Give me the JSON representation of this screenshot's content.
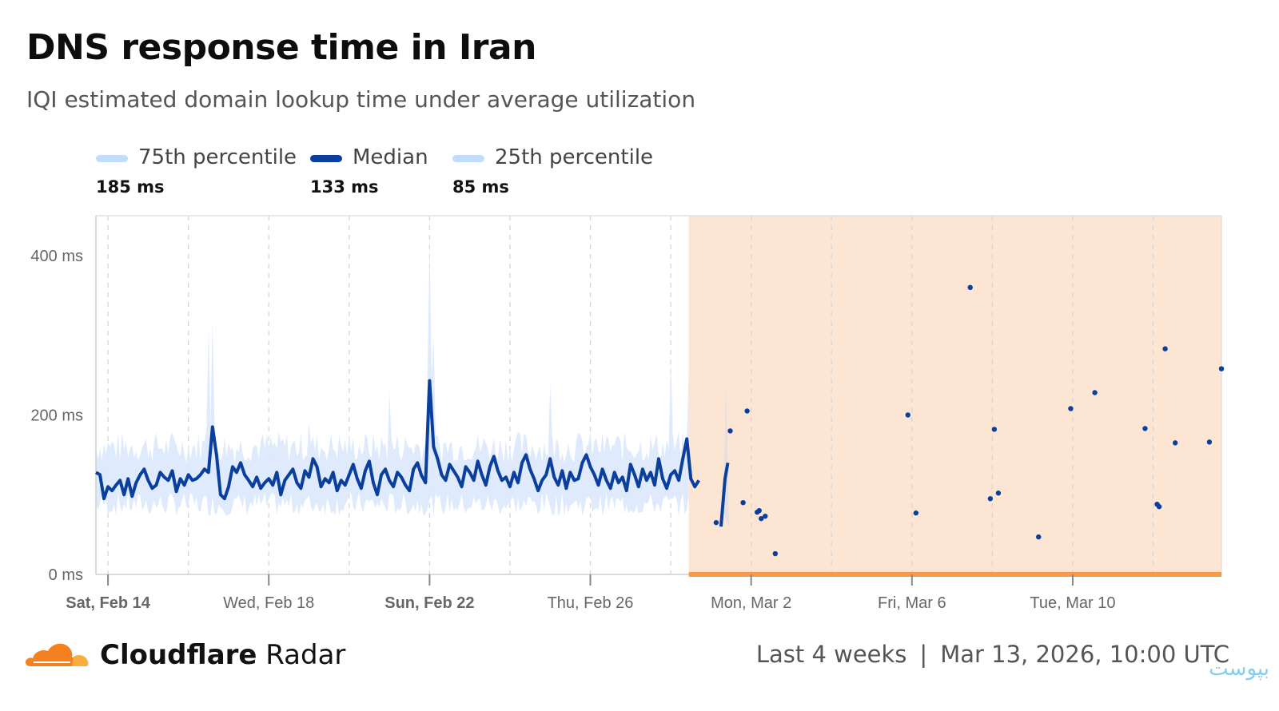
{
  "title": "DNS response time in Iran",
  "subtitle": "IQI estimated domain lookup time under average utilization",
  "legend": [
    {
      "label": "75th percentile",
      "value": "185 ms",
      "color": "#c2dcfc"
    },
    {
      "label": "Median",
      "value": "133 ms",
      "color": "#0a3f9e"
    },
    {
      "label": "25th percentile",
      "value": "85 ms",
      "color": "#c2dcfc"
    }
  ],
  "footer": {
    "brand_bold": "Cloudflare",
    "brand_rest": " Radar",
    "period": "Last 4 weeks",
    "separator": "|",
    "timestamp": "Mar 13, 2026, 10:00 UTC",
    "watermark": "بپوست"
  },
  "colors": {
    "median": "#0a3f9e",
    "band": "#dde9fd",
    "outage_fill": "#fde5d3",
    "outage_line": "#f59a4c",
    "grid": "#d6d6d6",
    "axis_text": "#666666"
  },
  "chart_data": {
    "type": "line",
    "title": "DNS response time in Iran",
    "ylabel": "",
    "xlabel": "",
    "y_unit": "ms",
    "ylim": [
      0,
      450
    ],
    "y_ticks": [
      {
        "value": 0,
        "label": "0 ms"
      },
      {
        "value": 200,
        "label": "200 ms"
      },
      {
        "value": 400,
        "label": "400 ms"
      }
    ],
    "x_range_days": [
      -0.3,
      27.7
    ],
    "x_ticks": [
      {
        "day": 0,
        "label": "Sat, Feb 14",
        "bold": true
      },
      {
        "day": 4,
        "label": "Wed, Feb 18",
        "bold": false
      },
      {
        "day": 8,
        "label": "Sun, Feb 22",
        "bold": true
      },
      {
        "day": 12,
        "label": "Thu, Feb 26",
        "bold": false
      },
      {
        "day": 16,
        "label": "Mon, Mar 2",
        "bold": false
      },
      {
        "day": 20,
        "label": "Fri, Mar 6",
        "bold": false
      },
      {
        "day": 24,
        "label": "Tue, Mar 10",
        "bold": false
      }
    ],
    "outage_region_days": [
      14.45,
      27.7
    ],
    "median_series": {
      "name": "Median",
      "points": [
        [
          -0.3,
          128
        ],
        [
          -0.2,
          125
        ],
        [
          -0.1,
          95
        ],
        [
          0,
          110
        ],
        [
          0.1,
          105
        ],
        [
          0.2,
          112
        ],
        [
          0.3,
          118
        ],
        [
          0.4,
          100
        ],
        [
          0.5,
          120
        ],
        [
          0.6,
          98
        ],
        [
          0.7,
          115
        ],
        [
          0.8,
          125
        ],
        [
          0.9,
          132
        ],
        [
          1,
          118
        ],
        [
          1.1,
          108
        ],
        [
          1.2,
          112
        ],
        [
          1.3,
          128
        ],
        [
          1.4,
          122
        ],
        [
          1.5,
          118
        ],
        [
          1.6,
          130
        ],
        [
          1.7,
          104
        ],
        [
          1.8,
          120
        ],
        [
          1.9,
          112
        ],
        [
          2,
          125
        ],
        [
          2.1,
          118
        ],
        [
          2.2,
          120
        ],
        [
          2.3,
          125
        ],
        [
          2.4,
          132
        ],
        [
          2.5,
          128
        ],
        [
          2.6,
          185
        ],
        [
          2.7,
          150
        ],
        [
          2.8,
          100
        ],
        [
          2.9,
          95
        ],
        [
          3,
          110
        ],
        [
          3.1,
          135
        ],
        [
          3.2,
          128
        ],
        [
          3.3,
          140
        ],
        [
          3.4,
          125
        ],
        [
          3.5,
          118
        ],
        [
          3.6,
          110
        ],
        [
          3.7,
          122
        ],
        [
          3.8,
          108
        ],
        [
          3.9,
          115
        ],
        [
          4,
          120
        ],
        [
          4.1,
          112
        ],
        [
          4.2,
          128
        ],
        [
          4.3,
          100
        ],
        [
          4.4,
          118
        ],
        [
          4.5,
          125
        ],
        [
          4.6,
          132
        ],
        [
          4.7,
          115
        ],
        [
          4.8,
          108
        ],
        [
          4.9,
          130
        ],
        [
          5,
          122
        ],
        [
          5.1,
          145
        ],
        [
          5.2,
          135
        ],
        [
          5.3,
          110
        ],
        [
          5.4,
          120
        ],
        [
          5.5,
          115
        ],
        [
          5.6,
          128
        ],
        [
          5.7,
          105
        ],
        [
          5.8,
          118
        ],
        [
          5.9,
          112
        ],
        [
          6,
          125
        ],
        [
          6.1,
          138
        ],
        [
          6.2,
          120
        ],
        [
          6.3,
          108
        ],
        [
          6.4,
          130
        ],
        [
          6.5,
          142
        ],
        [
          6.6,
          115
        ],
        [
          6.7,
          100
        ],
        [
          6.8,
          125
        ],
        [
          6.9,
          132
        ],
        [
          7,
          118
        ],
        [
          7.1,
          110
        ],
        [
          7.2,
          128
        ],
        [
          7.3,
          122
        ],
        [
          7.4,
          112
        ],
        [
          7.5,
          105
        ],
        [
          7.6,
          132
        ],
        [
          7.7,
          140
        ],
        [
          7.8,
          124
        ],
        [
          7.9,
          115
        ],
        [
          8,
          243
        ],
        [
          8.1,
          160
        ],
        [
          8.2,
          145
        ],
        [
          8.3,
          125
        ],
        [
          8.4,
          118
        ],
        [
          8.5,
          138
        ],
        [
          8.6,
          130
        ],
        [
          8.7,
          122
        ],
        [
          8.8,
          110
        ],
        [
          8.9,
          135
        ],
        [
          9,
          128
        ],
        [
          9.1,
          118
        ],
        [
          9.2,
          142
        ],
        [
          9.3,
          125
        ],
        [
          9.4,
          112
        ],
        [
          9.5,
          135
        ],
        [
          9.6,
          148
        ],
        [
          9.7,
          130
        ],
        [
          9.8,
          118
        ],
        [
          9.9,
          122
        ],
        [
          10,
          110
        ],
        [
          10.1,
          128
        ],
        [
          10.2,
          115
        ],
        [
          10.3,
          140
        ],
        [
          10.4,
          150
        ],
        [
          10.5,
          132
        ],
        [
          10.6,
          120
        ],
        [
          10.7,
          105
        ],
        [
          10.8,
          118
        ],
        [
          10.9,
          125
        ],
        [
          11,
          145
        ],
        [
          11.1,
          122
        ],
        [
          11.2,
          112
        ],
        [
          11.3,
          130
        ],
        [
          11.4,
          108
        ],
        [
          11.5,
          128
        ],
        [
          11.6,
          118
        ],
        [
          11.7,
          120
        ],
        [
          11.8,
          140
        ],
        [
          11.9,
          150
        ],
        [
          12,
          135
        ],
        [
          12.1,
          125
        ],
        [
          12.2,
          112
        ],
        [
          12.3,
          132
        ],
        [
          12.4,
          118
        ],
        [
          12.5,
          108
        ],
        [
          12.6,
          128
        ],
        [
          12.7,
          115
        ],
        [
          12.8,
          122
        ],
        [
          12.9,
          105
        ],
        [
          13,
          138
        ],
        [
          13.1,
          125
        ],
        [
          13.2,
          110
        ],
        [
          13.3,
          132
        ],
        [
          13.4,
          118
        ],
        [
          13.5,
          128
        ],
        [
          13.6,
          112
        ],
        [
          13.7,
          145
        ],
        [
          13.8,
          120
        ],
        [
          13.9,
          108
        ],
        [
          14,
          125
        ],
        [
          14.1,
          130
        ],
        [
          14.2,
          118
        ],
        [
          14.3,
          145
        ],
        [
          14.4,
          170
        ],
        [
          14.5,
          120
        ],
        [
          14.6,
          110
        ],
        [
          14.7,
          118
        ]
      ],
      "segment2": [
        [
          15.25,
          60
        ],
        [
          15.35,
          120
        ],
        [
          15.42,
          140
        ]
      ],
      "dots": [
        [
          15.13,
          65
        ],
        [
          15.48,
          180
        ],
        [
          15.8,
          90
        ],
        [
          15.9,
          205
        ],
        [
          16.15,
          78
        ],
        [
          16.2,
          80
        ],
        [
          16.25,
          70
        ],
        [
          16.35,
          73
        ],
        [
          16.6,
          26
        ],
        [
          19.9,
          200
        ],
        [
          20.1,
          77
        ],
        [
          21.45,
          360
        ],
        [
          21.95,
          95
        ],
        [
          22.05,
          182
        ],
        [
          22.15,
          102
        ],
        [
          23.15,
          47
        ],
        [
          23.95,
          208
        ],
        [
          24.55,
          228
        ],
        [
          25.8,
          183
        ],
        [
          26.1,
          88
        ],
        [
          26.15,
          85
        ],
        [
          26.3,
          283
        ],
        [
          26.55,
          165
        ],
        [
          27.4,
          166
        ],
        [
          27.7,
          258
        ]
      ]
    },
    "band_series": {
      "name": "25th–75th percentile",
      "upper_base": 160,
      "lower_base": 88,
      "spikes": [
        [
          2.5,
          310
        ],
        [
          2.6,
          320
        ],
        [
          5.0,
          190
        ],
        [
          7.0,
          230
        ],
        [
          8.0,
          420
        ],
        [
          8.1,
          300
        ],
        [
          11.0,
          240
        ],
        [
          14.0,
          270
        ],
        [
          14.45,
          260
        ]
      ]
    }
  }
}
